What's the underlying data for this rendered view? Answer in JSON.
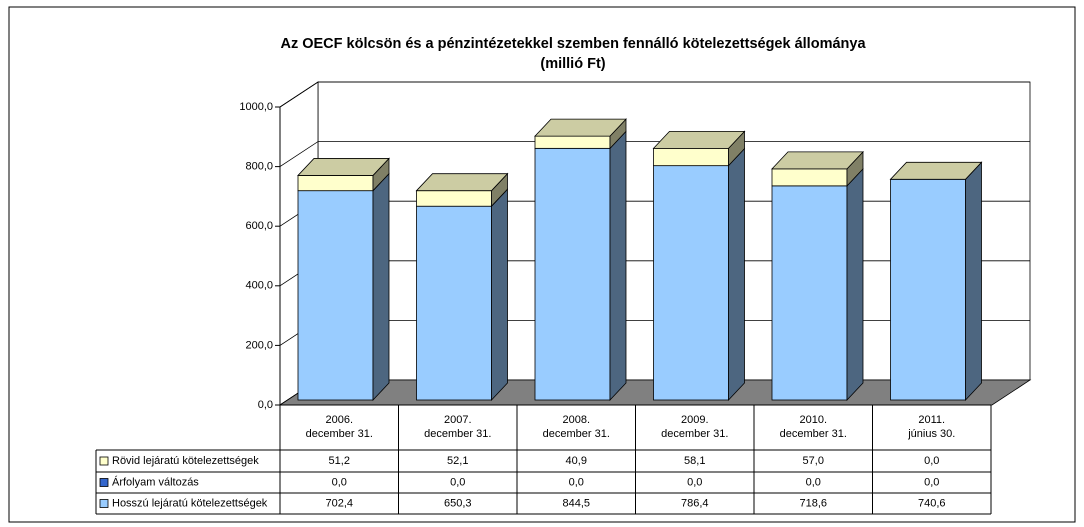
{
  "chart_data": {
    "type": "bar3d_stacked",
    "title": "Az OECF kölcsön és a pénzintézetekkel szemben fennálló kötelezettségek állománya",
    "subtitle": "(millió Ft)",
    "categories": [
      "2006. december 31.",
      "2007. december 31.",
      "2008. december 31.",
      "2009. december 31.",
      "2010. december 31.",
      "2011. június 30."
    ],
    "series": [
      {
        "name": "Rövid lejáratú kötelezettségek",
        "color": "#ffffcc",
        "values": [
          51.2,
          52.1,
          40.9,
          58.1,
          57.0,
          0.0
        ],
        "value_labels": [
          "51,2",
          "52,1",
          "40,9",
          "58,1",
          "57,0",
          "0,0"
        ]
      },
      {
        "name": "Árfolyam változás",
        "color": "#3366cc",
        "values": [
          0.0,
          0.0,
          0.0,
          0.0,
          0.0,
          0.0
        ],
        "value_labels": [
          "0,0",
          "0,0",
          "0,0",
          "0,0",
          "0,0",
          "0,0"
        ]
      },
      {
        "name": "Hosszú lejáratú kötelezettségek",
        "color": "#99ccff",
        "values": [
          702.4,
          650.3,
          844.5,
          786.4,
          718.6,
          740.6
        ],
        "value_labels": [
          "702,4",
          "650,3",
          "844,5",
          "786,4",
          "718,6",
          "740,6"
        ]
      }
    ],
    "ylim": [
      0,
      1000
    ],
    "yticks": [
      {
        "value": 0,
        "label": "0,0"
      },
      {
        "value": 200,
        "label": "200,0"
      },
      {
        "value": 400,
        "label": "400,0"
      },
      {
        "value": 600,
        "label": "600,0"
      },
      {
        "value": 800,
        "label": "800,0"
      },
      {
        "value": 1000,
        "label": "1000,0"
      }
    ],
    "grid": true,
    "floor_color": "#808080"
  }
}
